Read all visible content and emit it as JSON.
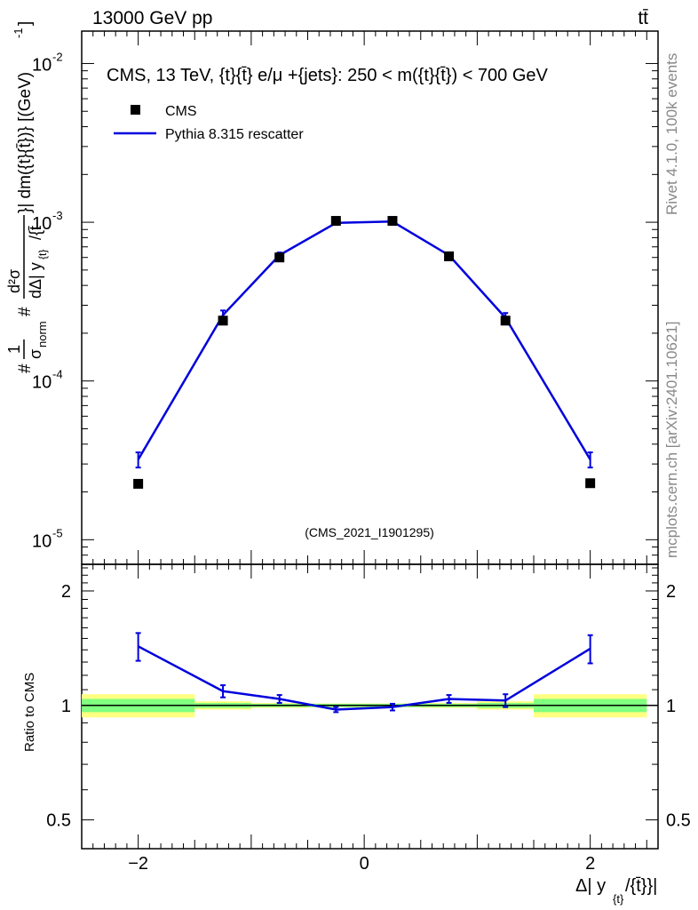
{
  "header": {
    "left": "13000 GeV pp",
    "right": "tt̄"
  },
  "side_labels": {
    "rivet": "Rivet 4.1.0,  100k events",
    "mcplots": "mcplots.cern.ch [arXiv:2401.10621]"
  },
  "colors": {
    "data": "#000000",
    "mc": "#0000dd",
    "band_inner": "#80ff80",
    "band_outer": "#ffff80",
    "watermark": "#999999"
  },
  "chart_data": [
    {
      "type": "scatter",
      "panel": "main",
      "title": "CMS, 13 TeV, {t}{t̄} e/μ +{jets}: 250 < m({t}{t̄}) < 700 GeV",
      "watermark": "(CMS_2021_I1901295)",
      "ylabel_parts": {
        "hash1": "#",
        "one": "1",
        "sigma_norm": "σ",
        "norm_sub": "norm",
        "hash2": "#",
        "d2sigma_num": "d²σ",
        "denominator": "dΔ| y",
        "denominator_sub": "{t}",
        "denominator_tail": "/{t̄",
        "rest": "}| dm({t}{t̄})} [(GeV)",
        "rest_sup": "-1",
        "rest_end": "]"
      },
      "yscale": "log",
      "ylim": [
        7e-06,
        0.016
      ],
      "xlim": [
        -2.5,
        2.6
      ],
      "y_ticks": [
        {
          "base": "10",
          "exp": "-5",
          "value": 1e-05
        },
        {
          "base": "10",
          "exp": "-4",
          "value": 0.0001
        },
        {
          "base": "10",
          "exp": "-3",
          "value": 0.001
        },
        {
          "base": "10",
          "exp": "-2",
          "value": 0.01
        }
      ],
      "legend": [
        {
          "label": "CMS",
          "marker": "square"
        },
        {
          "label": "Pythia 8.315 rescatter",
          "marker": "line"
        }
      ],
      "legend_position": "top-left",
      "bin_edges": [
        -2.5,
        -1.5,
        -1.0,
        -0.5,
        0.0,
        0.5,
        1.0,
        1.5,
        2.5
      ],
      "series": [
        {
          "name": "CMS",
          "x": [
            -2.0,
            -1.25,
            -0.75,
            -0.25,
            0.25,
            0.75,
            1.25,
            2.0
          ],
          "values": [
            2.25e-05,
            0.00024,
            0.0006,
            0.00102,
            0.00102,
            0.00061,
            0.00024,
            2.27e-05
          ]
        },
        {
          "name": "Pythia 8.315 rescatter",
          "x": [
            -2.0,
            -1.25,
            -0.75,
            -0.25,
            0.25,
            0.75,
            1.25,
            2.0
          ],
          "values": [
            3.2e-05,
            0.00026,
            0.00062,
            0.00099,
            0.00101,
            0.00062,
            0.00025,
            3.2e-05
          ],
          "errors": [
            3.5e-06,
            1.8e-05,
            2.5e-05,
            2.5e-05,
            2.5e-05,
            2.5e-05,
            1.8e-05,
            3.5e-06
          ]
        }
      ]
    },
    {
      "type": "line",
      "panel": "ratio",
      "ylabel": "Ratio to CMS",
      "xlabel_parts": {
        "main": "Δ| y",
        "sub": "{t}",
        "tail": "/{t̄}}|"
      },
      "yscale": "log",
      "ylim": [
        0.42,
        2.35
      ],
      "xlim": [
        -2.5,
        2.6
      ],
      "y_ticks": [
        {
          "label": "0.5",
          "value": 0.5
        },
        {
          "label": "1",
          "value": 1
        },
        {
          "label": "2",
          "value": 2
        }
      ],
      "x_ticks": [
        {
          "label": "−2",
          "value": -2
        },
        {
          "label": "0",
          "value": 0
        },
        {
          "label": "2",
          "value": 2
        }
      ],
      "bin_edges": [
        -2.5,
        -1.5,
        -1.0,
        -0.5,
        0.0,
        0.5,
        1.0,
        1.5,
        2.5
      ],
      "band_inner": [
        0.04,
        0.015,
        0.01,
        0.01,
        0.01,
        0.01,
        0.015,
        0.04
      ],
      "band_outer": [
        0.07,
        0.025,
        0.015,
        0.012,
        0.012,
        0.015,
        0.025,
        0.07
      ],
      "series": [
        {
          "name": "Pythia 8.315 rescatter",
          "x": [
            -2.0,
            -1.25,
            -0.75,
            -0.25,
            0.25,
            0.75,
            1.25,
            2.0
          ],
          "values": [
            1.43,
            1.09,
            1.04,
            0.975,
            0.99,
            1.04,
            1.03,
            1.41
          ],
          "errors": [
            0.12,
            0.04,
            0.025,
            0.015,
            0.02,
            0.025,
            0.04,
            0.12
          ]
        }
      ]
    }
  ]
}
